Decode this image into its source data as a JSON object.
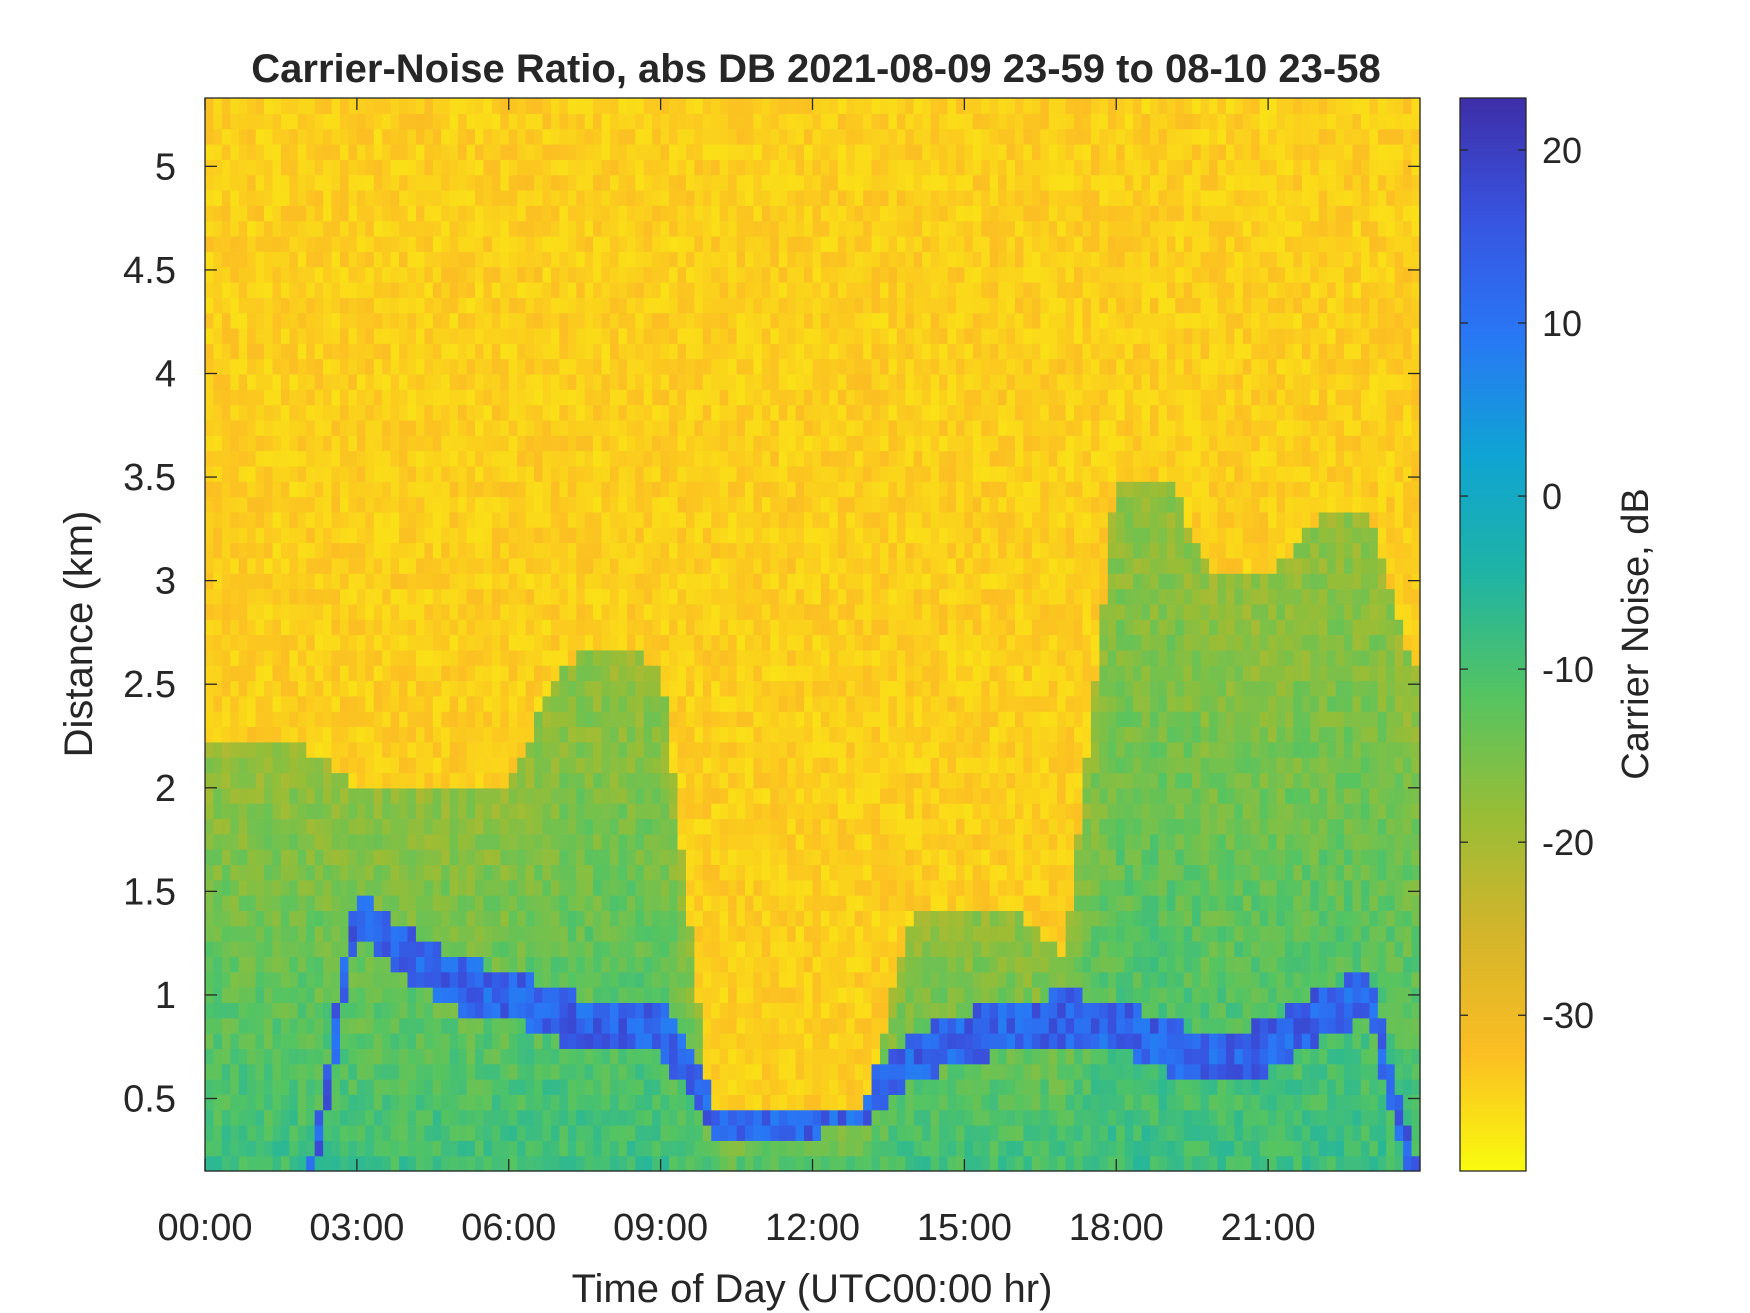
{
  "chart_data": {
    "type": "heatmap",
    "title": "Carrier-Noise Ratio, abs DB 2021-08-09 23-59 to 08-10 23-58",
    "xlabel": "Time of Day (UTC00:00 hr)",
    "ylabel": "Distance (km)",
    "colorbar_label": "Carrier Noise, dB",
    "xlim_hours": [
      0,
      24
    ],
    "ylim_km": [
      0.15,
      5.33
    ],
    "clim_db": [
      -39,
      23
    ],
    "x_ticks": [
      {
        "hour": 0,
        "label": "00:00"
      },
      {
        "hour": 3,
        "label": "03:00"
      },
      {
        "hour": 6,
        "label": "06:00"
      },
      {
        "hour": 9,
        "label": "09:00"
      },
      {
        "hour": 12,
        "label": "12:00"
      },
      {
        "hour": 15,
        "label": "15:00"
      },
      {
        "hour": 18,
        "label": "18:00"
      },
      {
        "hour": 21,
        "label": "21:00"
      }
    ],
    "y_ticks": [
      {
        "km": 0.5,
        "label": "0.5"
      },
      {
        "km": 1,
        "label": "1"
      },
      {
        "km": 1.5,
        "label": "1.5"
      },
      {
        "km": 2,
        "label": "2"
      },
      {
        "km": 2.5,
        "label": "2.5"
      },
      {
        "km": 3,
        "label": "3"
      },
      {
        "km": 3.5,
        "label": "3.5"
      },
      {
        "km": 4,
        "label": "4"
      },
      {
        "km": 4.5,
        "label": "4.5"
      },
      {
        "km": 5,
        "label": "5"
      }
    ],
    "colorbar_ticks": [
      {
        "db": 20,
        "label": "20"
      },
      {
        "db": 10,
        "label": "10"
      },
      {
        "db": 0,
        "label": "0"
      },
      {
        "db": -10,
        "label": "-10"
      },
      {
        "db": -20,
        "label": "-20"
      },
      {
        "db": -30,
        "label": "-30"
      }
    ],
    "colormap": "parula-reversed",
    "colormap_stops": [
      "#f9fb0e",
      "#fbbe23",
      "#d3b52b",
      "#98bd37",
      "#55c462",
      "#1fb4a4",
      "#0fa4d3",
      "#2977f5",
      "#3853e0",
      "#3e2ea8"
    ],
    "background_db": -34,
    "time_hours": [
      0,
      1,
      2,
      3,
      4,
      5,
      6,
      7,
      8,
      9,
      10,
      11,
      12,
      13,
      14,
      15,
      16,
      17,
      18,
      19,
      20,
      21,
      22,
      23,
      24
    ],
    "signal_top_km": [
      2.2,
      2.2,
      2.2,
      2.0,
      2.0,
      2.0,
      2.0,
      2.6,
      2.7,
      2.6,
      0.45,
      0.45,
      0.45,
      0.45,
      1.4,
      1.4,
      1.4,
      1.2,
      3.5,
      3.5,
      3.0,
      3.0,
      3.3,
      3.3,
      2.5
    ],
    "cloud_base_km": [
      0.0,
      0.0,
      0.0,
      1.4,
      1.2,
      1.05,
      1.0,
      0.9,
      0.85,
      0.85,
      0.45,
      0.45,
      0.45,
      0.5,
      0.7,
      0.8,
      0.85,
      0.9,
      0.85,
      0.75,
      0.7,
      0.75,
      0.9,
      1.0,
      0.0
    ]
  }
}
